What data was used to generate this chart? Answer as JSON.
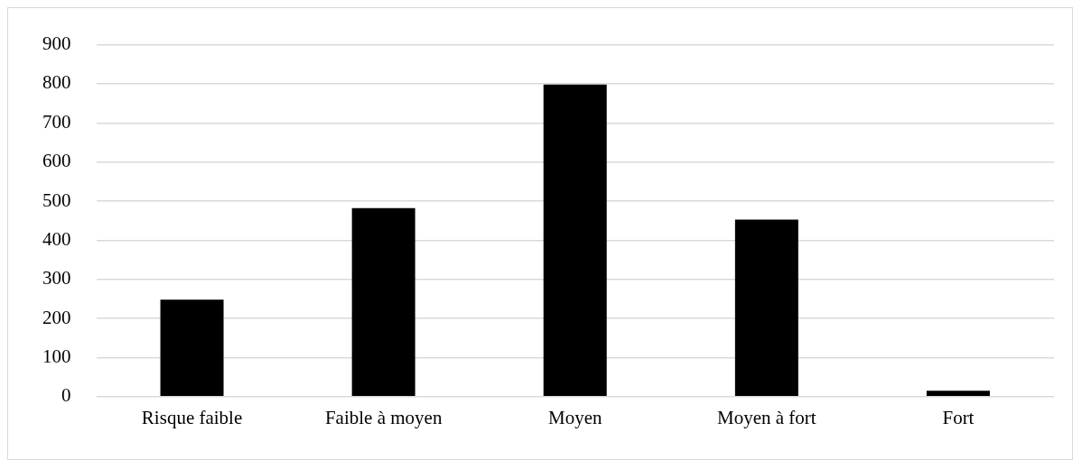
{
  "chart_data": {
    "type": "bar",
    "categories": [
      "Risque faible",
      "Faible à moyen",
      "Moyen",
      "Moyen à fort",
      "Fort"
    ],
    "values": [
      248,
      482,
      798,
      453,
      15
    ],
    "color": "#000000",
    "ylim": [
      0,
      900
    ],
    "yticks": [
      0,
      100,
      200,
      300,
      400,
      500,
      600,
      700,
      800,
      900
    ],
    "grid": "y",
    "legend": false
  }
}
